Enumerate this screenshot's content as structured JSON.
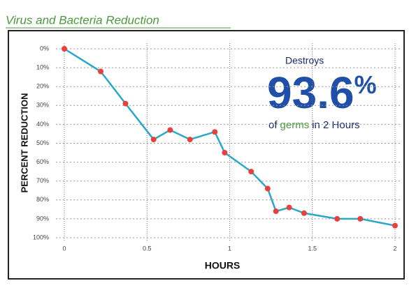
{
  "chart_data": {
    "type": "line",
    "title": "Virus and Bacteria Reduction",
    "y_label": "PERCENT REDUCTION",
    "x_label": "HOURS",
    "x": [
      0,
      0.22,
      0.37,
      0.54,
      0.64,
      0.76,
      0.91,
      0.97,
      1.13,
      1.23,
      1.28,
      1.36,
      1.45,
      1.65,
      1.79,
      2
    ],
    "values": [
      0,
      12,
      29,
      48,
      43,
      48,
      44,
      55,
      65,
      74,
      86,
      84,
      87,
      90,
      90,
      93.6
    ],
    "color": "#2aa7c9",
    "marker_color": "#e8403c",
    "xlim": [
      0,
      2
    ],
    "xticks": [
      0,
      0.5,
      1,
      1.5,
      2
    ],
    "ylim": [
      0,
      100
    ],
    "y_reversed": true,
    "yticks": [
      {
        "value": 0,
        "label": "0%"
      },
      {
        "value": 10,
        "label": "10%"
      },
      {
        "value": 20,
        "label": "20%"
      },
      {
        "value": 30,
        "label": "30%"
      },
      {
        "value": 40,
        "label": "40%"
      },
      {
        "value": 50,
        "label": "50%"
      },
      {
        "value": 60,
        "label": "60%"
      },
      {
        "value": 70,
        "label": "70%"
      },
      {
        "value": 80,
        "label": "80%"
      },
      {
        "value": 90,
        "label": "90%"
      },
      {
        "value": 100,
        "label": "100%"
      }
    ],
    "grid": true,
    "annotation": {
      "line1": "Destroys",
      "big": "93.6",
      "unit": "%",
      "pre": "of",
      "highlight": "germs",
      "post": "in 2 Hours"
    }
  }
}
